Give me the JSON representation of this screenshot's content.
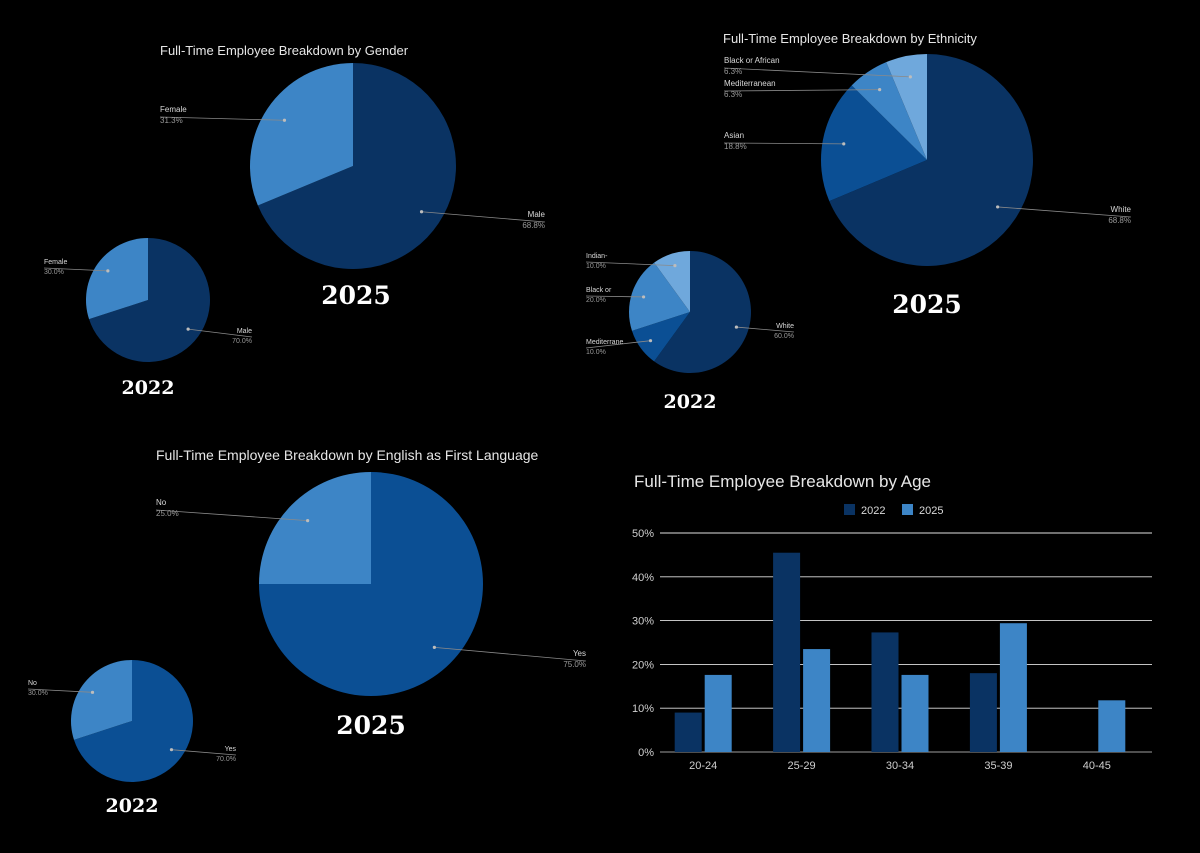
{
  "colors": {
    "background": "#000000",
    "dark_navy": "#0a3363",
    "mid_blue": "#0b4f94",
    "blue": "#3d85c6",
    "light_blue": "#6fa8dc",
    "gridline": "#e0e0e0"
  },
  "chart_data": [
    {
      "id": "gender",
      "type": "pie",
      "title": "Full-Time Employee Breakdown by Gender",
      "pies": [
        {
          "year_label": "2025",
          "slices": [
            {
              "name": "Male",
              "value": 68.8,
              "pct_label": "68.8%",
              "color": "#0a3363"
            },
            {
              "name": "Female",
              "value": 31.3,
              "pct_label": "31.3%",
              "color": "#3d85c6"
            }
          ]
        },
        {
          "year_label": "2022",
          "slices": [
            {
              "name": "Male",
              "value": 70.0,
              "pct_label": "70.0%",
              "color": "#0a3363"
            },
            {
              "name": "Female",
              "value": 30.0,
              "pct_label": "30.0%",
              "color": "#3d85c6"
            }
          ]
        }
      ]
    },
    {
      "id": "ethnicity",
      "type": "pie",
      "title": "Full-Time Employee Breakdown by Ethnicity",
      "pies": [
        {
          "year_label": "2025",
          "slices": [
            {
              "name": "White",
              "value": 68.8,
              "pct_label": "68.8%",
              "color": "#0a3363"
            },
            {
              "name": "Asian",
              "value": 18.8,
              "pct_label": "18.8%",
              "color": "#0b4f94"
            },
            {
              "name": "Mediterranean",
              "value": 6.3,
              "pct_label": "6.3%",
              "color": "#3d85c6"
            },
            {
              "name": "Black or African",
              "value": 6.3,
              "pct_label": "6.3%",
              "color": "#6fa8dc"
            }
          ]
        },
        {
          "year_label": "2022",
          "slices": [
            {
              "name": "White",
              "value": 60.0,
              "pct_label": "60.0%",
              "color": "#0a3363"
            },
            {
              "name": "Mediterrane",
              "value": 10.0,
              "pct_label": "10.0%",
              "color": "#0b4f94"
            },
            {
              "name": "Black or",
              "value": 20.0,
              "pct_label": "20.0%",
              "color": "#3d85c6"
            },
            {
              "name": "Indian-",
              "value": 10.0,
              "pct_label": "10.0%",
              "color": "#6fa8dc"
            }
          ]
        }
      ]
    },
    {
      "id": "language",
      "type": "pie",
      "title": "Full-Time Employee Breakdown by English as First Language",
      "pies": [
        {
          "year_label": "2025",
          "slices": [
            {
              "name": "Yes",
              "value": 75.0,
              "pct_label": "75.0%",
              "color": "#0b4f94"
            },
            {
              "name": "No",
              "value": 25.0,
              "pct_label": "25.0%",
              "color": "#3d85c6"
            }
          ]
        },
        {
          "year_label": "2022",
          "slices": [
            {
              "name": "Yes",
              "value": 70.0,
              "pct_label": "70.0%",
              "color": "#0b4f94"
            },
            {
              "name": "No",
              "value": 30.0,
              "pct_label": "30.0%",
              "color": "#3d85c6"
            }
          ]
        }
      ]
    },
    {
      "id": "age",
      "type": "bar",
      "title": "Full-Time Employee Breakdown by Age",
      "categories": [
        "20-24",
        "25-29",
        "30-34",
        "35-39",
        "40-45"
      ],
      "series": [
        {
          "name": "2022",
          "color": "#0a3363",
          "values": [
            9,
            45.5,
            27.3,
            18,
            0
          ]
        },
        {
          "name": "2025",
          "color": "#3d85c6",
          "values": [
            17.6,
            23.5,
            17.6,
            29.4,
            11.8
          ]
        }
      ],
      "ylim": [
        0,
        50
      ],
      "yticks": [
        0,
        10,
        20,
        30,
        40,
        50
      ],
      "ytick_labels": [
        "0%",
        "10%",
        "20%",
        "30%",
        "40%",
        "50%"
      ],
      "grid": true,
      "legend_position": "top-center"
    }
  ]
}
